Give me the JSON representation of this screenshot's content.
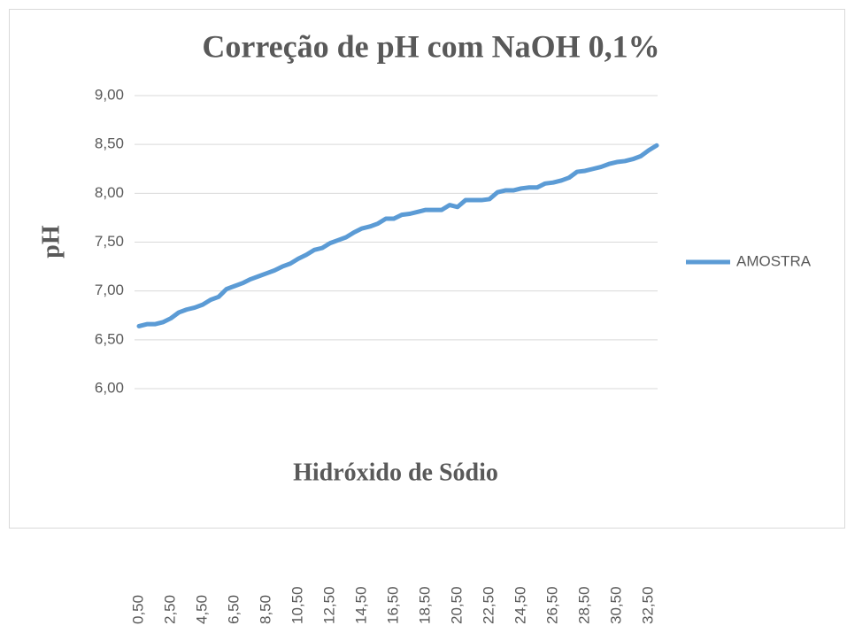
{
  "chart_data": {
    "type": "line",
    "title": "Correção de pH com NaOH 0,1%",
    "x_label": "Hidróxido de Sódio",
    "y_label": "pH",
    "categories": [
      "0,50",
      null,
      null,
      null,
      "2,50",
      null,
      null,
      null,
      "4,50",
      null,
      null,
      null,
      "6,50",
      null,
      null,
      null,
      "8,50",
      null,
      null,
      null,
      "10,50",
      null,
      null,
      null,
      "12,50",
      null,
      null,
      null,
      "14,50",
      null,
      null,
      null,
      "16,50",
      null,
      null,
      null,
      "18,50",
      null,
      null,
      null,
      "20,50",
      null,
      null,
      null,
      "22,50",
      null,
      null,
      null,
      "24,50",
      null,
      null,
      null,
      "26,50",
      null,
      null,
      null,
      "28,50",
      null,
      null,
      null,
      "30,50",
      null,
      null,
      null,
      "32,50",
      null
    ],
    "series": [
      {
        "name": "AMOSTRA",
        "color": "#5b9bd5",
        "values": [
          6.64,
          6.66,
          6.66,
          6.68,
          6.72,
          6.78,
          6.81,
          6.83,
          6.86,
          6.91,
          6.94,
          7.02,
          7.05,
          7.08,
          7.12,
          7.15,
          7.18,
          7.21,
          7.25,
          7.28,
          7.33,
          7.37,
          7.42,
          7.44,
          7.49,
          7.52,
          7.55,
          7.6,
          7.64,
          7.66,
          7.69,
          7.74,
          7.74,
          7.78,
          7.79,
          7.81,
          7.83,
          7.83,
          7.83,
          7.88,
          7.86,
          7.93,
          7.93,
          7.93,
          7.94,
          8.01,
          8.03,
          8.03,
          8.05,
          8.06,
          8.06,
          8.1,
          8.11,
          8.13,
          8.16,
          8.22,
          8.23,
          8.25,
          8.27,
          8.3,
          8.32,
          8.33,
          8.35,
          8.38,
          8.44,
          8.49
        ]
      }
    ],
    "ylim": [
      6,
      9
    ],
    "yticks": [
      {
        "value": 6,
        "label": "6,00"
      },
      {
        "value": 6.5,
        "label": "6,50"
      },
      {
        "value": 7,
        "label": "7,00"
      },
      {
        "value": 7.5,
        "label": "7,50"
      },
      {
        "value": 8,
        "label": "8,00"
      },
      {
        "value": 8.5,
        "label": "8,50"
      },
      {
        "value": 9,
        "label": "9,00"
      }
    ],
    "grid": true,
    "legend": "right"
  }
}
